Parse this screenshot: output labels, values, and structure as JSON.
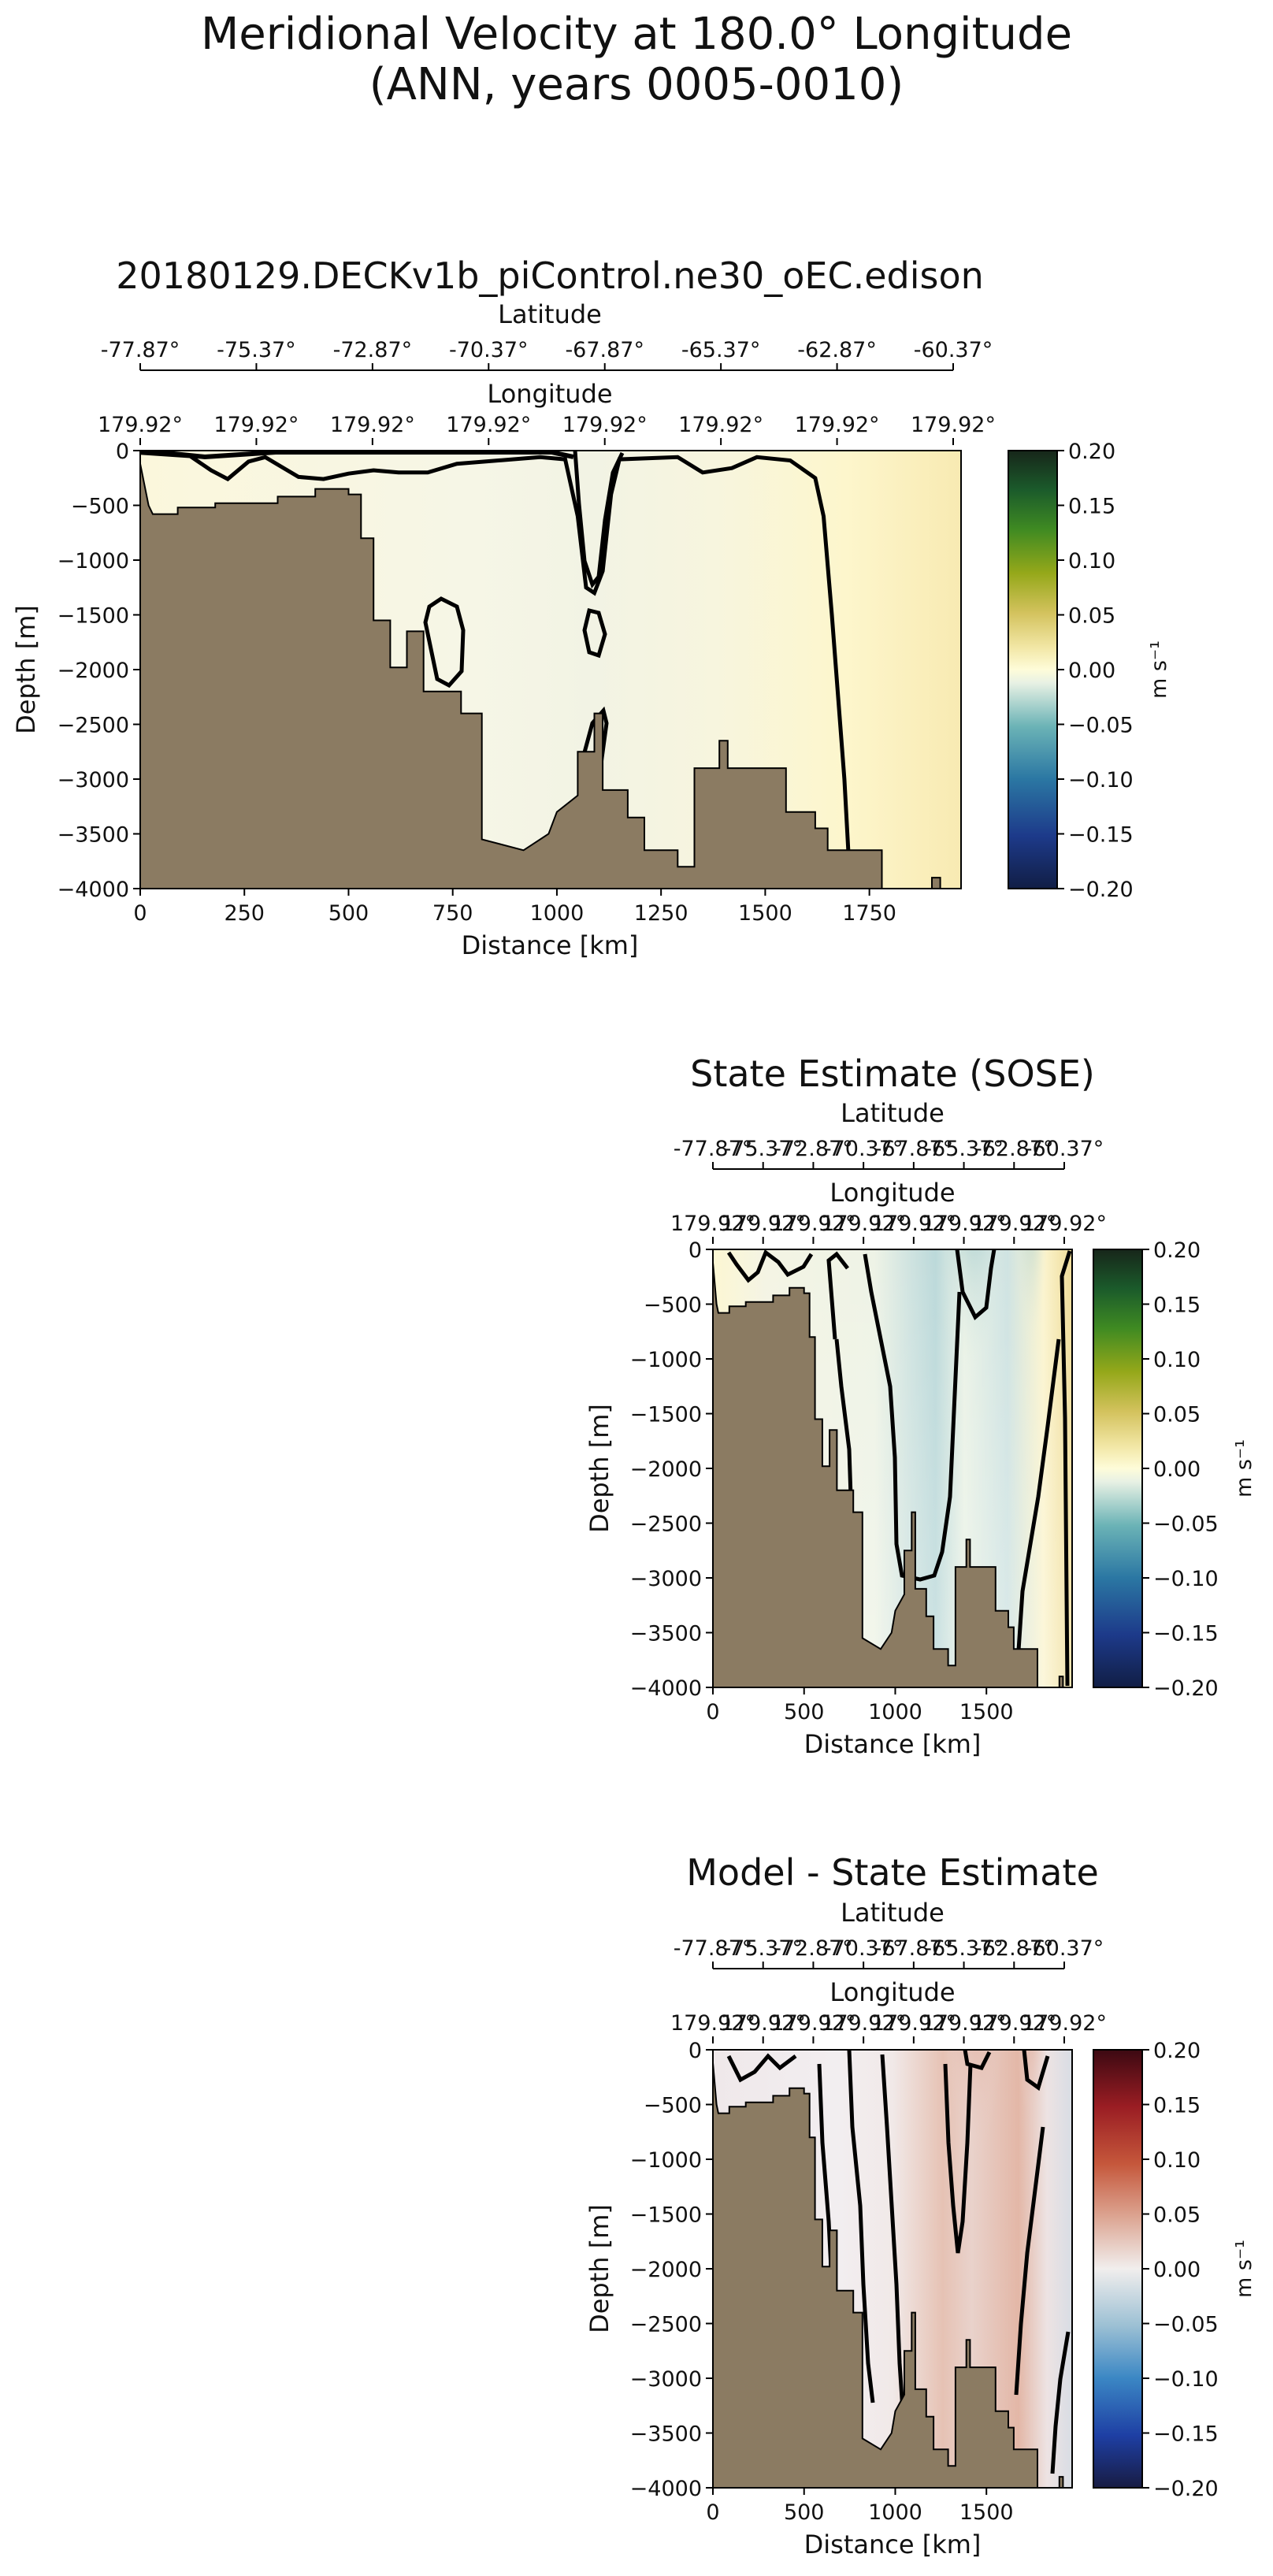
{
  "figure": {
    "title_line1": "Meridional Velocity at 180.0° Longitude",
    "title_line2": "(ANN, years 0005-0010)"
  },
  "chart_data": [
    {
      "type": "heatmap",
      "title": "20180129.DECKv1b_piControl.ne30_oEC.edison",
      "xlabel": "Distance [km]",
      "ylabel": "Depth [m]",
      "top_axis_1_label": "Latitude",
      "top_axis_2_label": "Longitude",
      "xlim": [
        0,
        1970
      ],
      "ylim": [
        -4000,
        0
      ],
      "xticks": [
        0,
        250,
        500,
        750,
        1000,
        1250,
        1500,
        1750
      ],
      "yticks": [
        0,
        -500,
        -1000,
        -1500,
        -2000,
        -2500,
        -3000,
        -3500,
        -4000
      ],
      "latitude_ticks": [
        "-77.87°",
        "-75.37°",
        "-72.87°",
        "-70.37°",
        "-67.87°",
        "-65.37°",
        "-62.87°",
        "-60.37°"
      ],
      "longitude_ticks": [
        "179.92°",
        "179.92°",
        "179.92°",
        "179.92°",
        "179.92°",
        "179.92°",
        "179.92°",
        "179.92°"
      ],
      "colorbar": {
        "label": "m s⁻¹",
        "colormap": "delta (blue-cream-green)",
        "range": [
          -0.2,
          0.2
        ],
        "ticks": [
          "0.20",
          "0.15",
          "0.10",
          "0.05",
          "0.00",
          "−0.05",
          "−0.10",
          "−0.15",
          "−0.20"
        ]
      },
      "bathymetry": [
        [
          0,
          -120
        ],
        [
          20,
          -500
        ],
        [
          30,
          -580
        ],
        [
          90,
          -580
        ],
        [
          90,
          -520
        ],
        [
          180,
          -520
        ],
        [
          180,
          -480
        ],
        [
          330,
          -480
        ],
        [
          330,
          -420
        ],
        [
          420,
          -420
        ],
        [
          420,
          -350
        ],
        [
          500,
          -350
        ],
        [
          500,
          -400
        ],
        [
          530,
          -400
        ],
        [
          530,
          -800
        ],
        [
          560,
          -800
        ],
        [
          560,
          -1550
        ],
        [
          600,
          -1550
        ],
        [
          600,
          -1980
        ],
        [
          640,
          -1980
        ],
        [
          640,
          -1650
        ],
        [
          680,
          -1650
        ],
        [
          680,
          -2200
        ],
        [
          770,
          -2200
        ],
        [
          770,
          -2400
        ],
        [
          820,
          -2400
        ],
        [
          820,
          -3550
        ],
        [
          920,
          -3650
        ],
        [
          980,
          -3500
        ],
        [
          1000,
          -3300
        ],
        [
          1050,
          -3150
        ],
        [
          1050,
          -2750
        ],
        [
          1090,
          -2750
        ],
        [
          1090,
          -2400
        ],
        [
          1110,
          -2400
        ],
        [
          1110,
          -3100
        ],
        [
          1170,
          -3100
        ],
        [
          1170,
          -3350
        ],
        [
          1210,
          -3350
        ],
        [
          1210,
          -3650
        ],
        [
          1290,
          -3650
        ],
        [
          1290,
          -3800
        ],
        [
          1330,
          -3800
        ],
        [
          1330,
          -2900
        ],
        [
          1390,
          -2900
        ],
        [
          1390,
          -2650
        ],
        [
          1410,
          -2650
        ],
        [
          1410,
          -2900
        ],
        [
          1550,
          -2900
        ],
        [
          1550,
          -3300
        ],
        [
          1620,
          -3300
        ],
        [
          1620,
          -3450
        ],
        [
          1650,
          -3450
        ],
        [
          1650,
          -3650
        ],
        [
          1780,
          -3650
        ],
        [
          1780,
          -4000
        ],
        [
          1900,
          -4000
        ],
        [
          1900,
          -3900
        ],
        [
          1920,
          -3900
        ],
        [
          1920,
          -4000
        ]
      ],
      "zero_contour": [
        [
          0,
          -20
        ],
        [
          120,
          -50
        ],
        [
          170,
          -180
        ],
        [
          210,
          -260
        ],
        [
          260,
          -100
        ],
        [
          300,
          -60
        ],
        [
          340,
          -150
        ],
        [
          380,
          -240
        ],
        [
          440,
          -260
        ],
        [
          500,
          -210
        ],
        [
          560,
          -180
        ],
        [
          620,
          -200
        ],
        [
          690,
          -200
        ],
        [
          760,
          -120
        ],
        [
          960,
          -60
        ],
        [
          1020,
          -80
        ],
        [
          1050,
          -600
        ],
        [
          1070,
          -1250
        ],
        [
          1090,
          -1300
        ],
        [
          1110,
          -1100
        ],
        [
          1130,
          -400
        ],
        [
          1150,
          -80
        ],
        [
          1290,
          -60
        ],
        [
          1350,
          -200
        ],
        [
          1420,
          -160
        ],
        [
          1480,
          -60
        ],
        [
          1560,
          -90
        ],
        [
          1620,
          -250
        ],
        [
          1640,
          -600
        ],
        [
          1660,
          -1500
        ],
        [
          1690,
          -3000
        ],
        [
          1700,
          -3700
        ]
      ],
      "field_description": "weak near-zero meridional velocity, slightly positive (cream) near the eastern boundary"
    },
    {
      "type": "heatmap",
      "title": "State Estimate (SOSE)",
      "xlabel": "Distance [km]",
      "ylabel": "Depth [m]",
      "top_axis_1_label": "Latitude",
      "top_axis_2_label": "Longitude",
      "xlim": [
        0,
        1970
      ],
      "ylim": [
        -4000,
        0
      ],
      "xticks": [
        0,
        500,
        1000,
        1500
      ],
      "yticks": [
        0,
        -500,
        -1000,
        -1500,
        -2000,
        -2500,
        -3000,
        -3500,
        -4000
      ],
      "latitude_ticks": [
        "-77.87°",
        "-75.37°",
        "-72.87°",
        "-70.37°",
        "-67.87°",
        "-65.37°",
        "-62.87°",
        "-60.37°"
      ],
      "longitude_ticks": [
        "179.92°",
        "179.92°",
        "179.92°",
        "179.92°",
        "179.92°",
        "179.92°",
        "179.92°",
        "179.92°"
      ],
      "colorbar": {
        "label": "m s⁻¹",
        "colormap": "delta (blue-cream-green)",
        "range": [
          -0.2,
          0.2
        ],
        "ticks": [
          "0.20",
          "0.15",
          "0.10",
          "0.05",
          "0.00",
          "−0.05",
          "−0.10",
          "−0.15",
          "−0.20"
        ]
      },
      "field_description": "negative (teal) velocity core near 1300-1500 km in upper 1500 m; positive cream bands near western slope and eastern boundary"
    },
    {
      "type": "heatmap",
      "title": "Model - State Estimate",
      "xlabel": "Distance [km]",
      "ylabel": "Depth [m]",
      "top_axis_1_label": "Latitude",
      "top_axis_2_label": "Longitude",
      "xlim": [
        0,
        1970
      ],
      "ylim": [
        -4000,
        0
      ],
      "xticks": [
        0,
        500,
        1000,
        1500
      ],
      "yticks": [
        0,
        -500,
        -1000,
        -1500,
        -2000,
        -2500,
        -3000,
        -3500,
        -4000
      ],
      "latitude_ticks": [
        "-77.87°",
        "-75.37°",
        "-72.87°",
        "-70.37°",
        "-67.87°",
        "-65.37°",
        "-62.87°",
        "-60.37°"
      ],
      "longitude_ticks": [
        "179.92°",
        "179.92°",
        "179.92°",
        "179.92°",
        "179.92°",
        "179.92°",
        "179.92°",
        "179.92°"
      ],
      "colorbar": {
        "label": "m s⁻¹",
        "colormap": "balance (blue-white-red)",
        "range": [
          -0.2,
          0.2
        ],
        "ticks": [
          "0.20",
          "0.15",
          "0.10",
          "0.05",
          "0.00",
          "−0.05",
          "−0.10",
          "−0.15",
          "−0.20"
        ]
      },
      "field_description": "positive (red) bias around 1300-1500 km and near 1700 km in upper ocean; weak negative elsewhere"
    }
  ],
  "colors": {
    "land": "#8b7b62",
    "contour": "#000000",
    "cream": "#fdf8d6",
    "teal": "#3a8fa5",
    "red": "#c9694f"
  }
}
